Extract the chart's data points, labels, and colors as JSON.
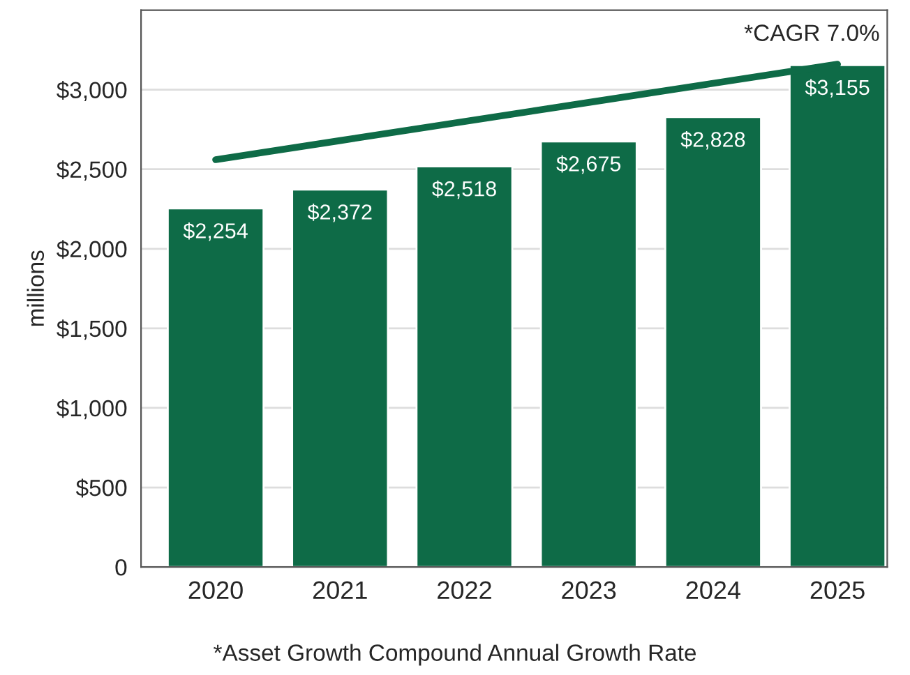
{
  "chart_data": {
    "type": "bar",
    "ylabel": "millions",
    "categories": [
      "2020",
      "2021",
      "2022",
      "2023",
      "2024",
      "2025"
    ],
    "series": [
      {
        "color": "#0e6b47",
        "values": [
          2254,
          2372,
          2518,
          2675,
          2828,
          3155
        ],
        "value_labels": [
          "$2,254",
          "$2,372",
          "$2,518",
          "$2,675",
          "$2,828",
          "$3,155"
        ]
      },
      {
        "type": "line",
        "color": "#0e6b47",
        "values": [
          2560,
          2680,
          2800,
          2920,
          3040,
          3160
        ]
      }
    ],
    "ylim": [
      0,
      3500
    ],
    "yticks": [
      {
        "value": 0,
        "label": "0"
      },
      {
        "value": 500,
        "label": "$500"
      },
      {
        "value": 1000,
        "label": "$1,000"
      },
      {
        "value": 1500,
        "label": "$1,500"
      },
      {
        "value": 2000,
        "label": "$2,000"
      },
      {
        "value": 2500,
        "label": "$2,500"
      },
      {
        "value": 3000,
        "label": "$3,000"
      }
    ],
    "grid": "y",
    "legend": false,
    "annotations": [
      "*CAGR 7.0%",
      "*Asset Growth Compound Annual Growth Rate"
    ]
  }
}
